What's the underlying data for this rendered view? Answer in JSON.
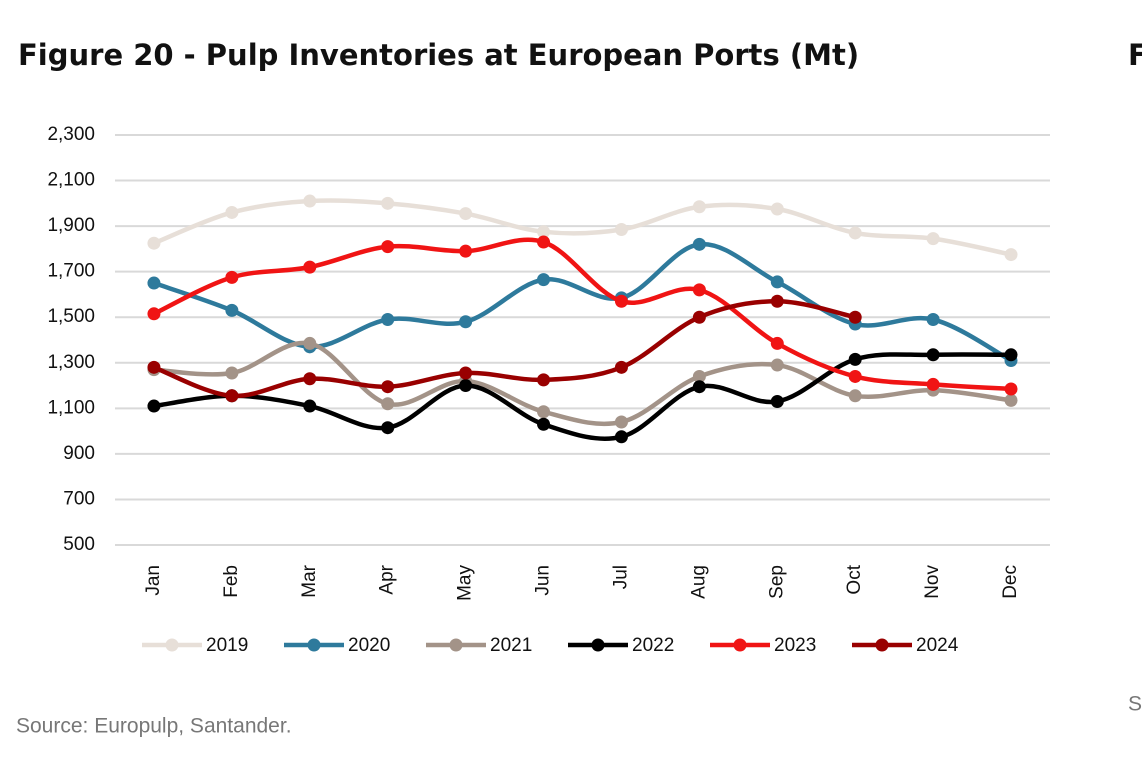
{
  "chart_data": {
    "type": "line",
    "title": "Figure 20 - Pulp Inventories at European Ports (Mt)",
    "source": "Source: Europulp, Santander.",
    "next_figure_title_fragment": "F",
    "next_source_fragment": "S",
    "categories": [
      "Jan",
      "Feb",
      "Mar",
      "Apr",
      "May",
      "Jun",
      "Jul",
      "Aug",
      "Sep",
      "Oct",
      "Nov",
      "Dec"
    ],
    "ylim": [
      500,
      2300
    ],
    "yticks": [
      500,
      700,
      900,
      {
        "value": 1100,
        "label": "1,100"
      },
      {
        "value": 1300,
        "label": "1,300"
      },
      {
        "value": 1500,
        "label": "1,500"
      },
      {
        "value": 1700,
        "label": "1,700"
      },
      {
        "value": 1900,
        "label": "1,900"
      },
      {
        "value": 2100,
        "label": "2,100"
      },
      {
        "value": 2300,
        "label": "2,300"
      }
    ],
    "grid": true,
    "legend": "bottom",
    "series": [
      {
        "name": "2019",
        "color": "#e7dfd8",
        "values": [
          1825,
          1960,
          2010,
          2000,
          1955,
          1875,
          1885,
          1985,
          1975,
          1870,
          1845,
          1775
        ]
      },
      {
        "name": "2020",
        "color": "#2e7a9c",
        "values": [
          1650,
          1530,
          1370,
          1490,
          1480,
          1665,
          1585,
          1820,
          1655,
          1470,
          1490,
          1310
        ]
      },
      {
        "name": "2021",
        "color": "#a39388",
        "values": [
          1270,
          1255,
          1385,
          1120,
          1220,
          1085,
          1040,
          1240,
          1290,
          1155,
          1180,
          1135
        ]
      },
      {
        "name": "2022",
        "color": "#000000",
        "values": [
          1110,
          1155,
          1110,
          1015,
          1200,
          1030,
          975,
          1195,
          1130,
          1315,
          1335,
          1335
        ]
      },
      {
        "name": "2023",
        "color": "#f01414",
        "values": [
          1515,
          1675,
          1720,
          1810,
          1790,
          1830,
          1570,
          1620,
          1385,
          1240,
          1205,
          1185
        ]
      },
      {
        "name": "2024",
        "color": "#990000",
        "values": [
          1280,
          1155,
          1230,
          1195,
          1255,
          1225,
          1280,
          1500,
          1570,
          1500,
          null,
          null
        ]
      }
    ]
  }
}
